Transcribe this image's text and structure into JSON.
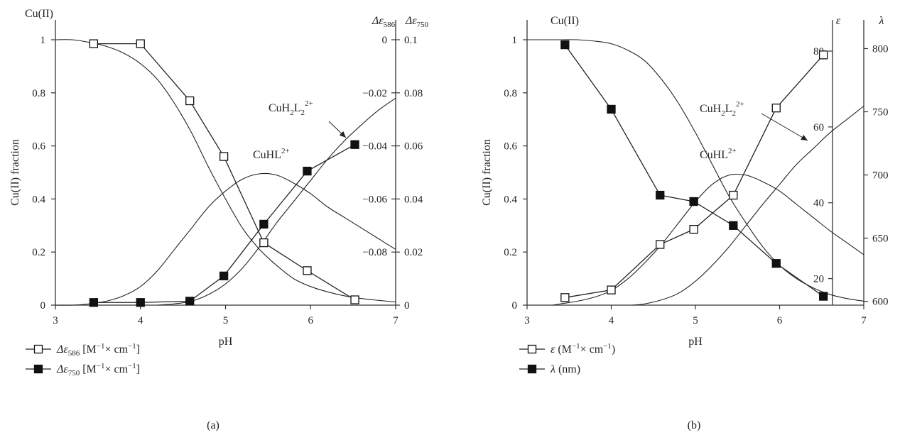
{
  "chart_data": [
    {
      "panel": "(a)",
      "type": "line",
      "corner_label": "Cu(II)",
      "xlabel": "pH",
      "ylabel": "Cu(II) fraction",
      "xlim": [
        3,
        7
      ],
      "ylim": [
        0,
        1
      ],
      "x_ticks": [
        "3",
        "4",
        "5",
        "6",
        "7"
      ],
      "y_ticks": [
        "0",
        "0.2",
        "0.4",
        "0.6",
        "0.8",
        "1"
      ],
      "right_axis_1": {
        "label": "Δε586",
        "ylim": [
          -0.1,
          0
        ],
        "ticks": [
          "0",
          "−0.02",
          "−0.04",
          "−0.06",
          "−0.08"
        ],
        "tick_values": [
          0,
          -0.02,
          -0.04,
          -0.06,
          -0.08
        ]
      },
      "right_axis_2": {
        "label": "Δε750",
        "ylim": [
          0,
          0.1
        ],
        "ticks": [
          "0",
          "0.02",
          "0.04",
          "0.06",
          "0.08",
          "0.1"
        ],
        "tick_values": [
          0,
          0.02,
          0.04,
          0.06,
          0.08,
          0.1
        ]
      },
      "species_curves": [
        {
          "label": "Cu(II)",
          "x": [
            3.0,
            3.2,
            3.4,
            3.6,
            3.8,
            4.0,
            4.2,
            4.4,
            4.6,
            4.8,
            5.0,
            5.2,
            5.4,
            5.6,
            5.8,
            6.0,
            6.2,
            6.4,
            6.6,
            6.8,
            7.0
          ],
          "y": [
            1.0,
            1.0,
            0.99,
            0.975,
            0.95,
            0.91,
            0.85,
            0.76,
            0.65,
            0.52,
            0.4,
            0.29,
            0.21,
            0.15,
            0.1,
            0.07,
            0.05,
            0.035,
            0.025,
            0.018,
            0.012
          ]
        },
        {
          "label": "CuHL2+",
          "x": [
            3.0,
            3.2,
            3.4,
            3.6,
            3.8,
            4.0,
            4.2,
            4.4,
            4.6,
            4.8,
            5.0,
            5.2,
            5.4,
            5.6,
            5.8,
            6.0,
            6.2,
            6.4,
            6.6,
            6.8,
            7.0
          ],
          "y": [
            0.0,
            0.0,
            0.005,
            0.015,
            0.035,
            0.07,
            0.13,
            0.21,
            0.29,
            0.37,
            0.43,
            0.475,
            0.495,
            0.49,
            0.46,
            0.42,
            0.37,
            0.33,
            0.29,
            0.25,
            0.21
          ]
        },
        {
          "label": "CuH2L22+",
          "x": [
            4.2,
            4.4,
            4.6,
            4.8,
            5.0,
            5.2,
            5.4,
            5.6,
            5.8,
            6.0,
            6.2,
            6.4,
            6.6,
            6.8,
            7.0
          ],
          "y": [
            0.0,
            0.005,
            0.015,
            0.04,
            0.08,
            0.14,
            0.22,
            0.31,
            0.39,
            0.47,
            0.55,
            0.62,
            0.68,
            0.735,
            0.78
          ]
        }
      ],
      "annotations": [
        {
          "text": "CuHL2+"
        },
        {
          "text": "CuH2L22+"
        }
      ],
      "series": [
        {
          "name": "Δε586 [M−1× cm−1]",
          "marker": "open-square",
          "axis": "right_axis_1",
          "x": [
            3.45,
            4.0,
            4.58,
            4.98,
            5.45,
            5.96,
            6.52
          ],
          "y": [
            -0.0015,
            -0.0015,
            -0.023,
            -0.044,
            -0.0765,
            -0.087,
            -0.098
          ]
        },
        {
          "name": "Δε750 [M−1× cm−1]",
          "marker": "filled-square",
          "axis": "right_axis_2",
          "x": [
            3.45,
            4.0,
            4.58,
            4.98,
            5.45,
            5.96,
            6.52
          ],
          "y": [
            0.001,
            0.001,
            0.0015,
            0.011,
            0.0305,
            0.0505,
            0.0605
          ]
        }
      ]
    },
    {
      "panel": "(b)",
      "type": "line",
      "corner_label": "Cu(II)",
      "xlabel": "pH",
      "ylabel": "Cu(II) fraction",
      "xlim": [
        3,
        7
      ],
      "ylim": [
        0,
        1
      ],
      "x_ticks": [
        "3",
        "4",
        "5",
        "6",
        "7"
      ],
      "y_ticks": [
        "0",
        "0.2",
        "0.4",
        "0.6",
        "0.8",
        "1"
      ],
      "right_axis_1": {
        "label": "ε",
        "ylim": [
          13,
          83
        ],
        "ticks": [
          "20",
          "40",
          "60",
          "80"
        ],
        "tick_values": [
          20,
          40,
          60,
          80
        ]
      },
      "right_axis_2": {
        "label": "λ",
        "ylim": [
          597,
          807
        ],
        "ticks": [
          "600",
          "650",
          "700",
          "750",
          "800"
        ],
        "tick_values": [
          600,
          650,
          700,
          750,
          800
        ]
      },
      "species_curves": [
        {
          "label": "Cu(II)",
          "x": [
            3.0,
            3.2,
            3.4,
            3.6,
            3.8,
            4.0,
            4.2,
            4.4,
            4.6,
            4.8,
            5.0,
            5.2,
            5.4,
            5.6,
            5.8,
            6.0,
            6.2,
            6.4,
            6.6,
            6.8,
            7.0
          ],
          "y": [
            1.0,
            1.0,
            1.0,
            1.0,
            0.995,
            0.985,
            0.96,
            0.92,
            0.85,
            0.76,
            0.65,
            0.53,
            0.41,
            0.31,
            0.22,
            0.15,
            0.1,
            0.065,
            0.04,
            0.025,
            0.015
          ]
        },
        {
          "label": "CuHL2+",
          "x": [
            3.3,
            3.4,
            3.6,
            3.8,
            4.0,
            4.2,
            4.4,
            4.6,
            4.8,
            5.0,
            5.2,
            5.4,
            5.6,
            5.8,
            6.0,
            6.2,
            6.4,
            6.6,
            6.8,
            7.0
          ],
          "y": [
            0.0,
            0.005,
            0.015,
            0.03,
            0.055,
            0.1,
            0.16,
            0.23,
            0.31,
            0.39,
            0.455,
            0.49,
            0.49,
            0.465,
            0.43,
            0.38,
            0.33,
            0.28,
            0.235,
            0.19
          ]
        },
        {
          "label": "CuH2L22+",
          "x": [
            4.25,
            4.4,
            4.6,
            4.8,
            5.0,
            5.2,
            5.4,
            5.6,
            5.8,
            6.0,
            6.2,
            6.4,
            6.6,
            6.8,
            7.0
          ],
          "y": [
            0.0,
            0.005,
            0.02,
            0.045,
            0.09,
            0.15,
            0.22,
            0.3,
            0.38,
            0.455,
            0.53,
            0.59,
            0.65,
            0.7,
            0.75
          ]
        }
      ],
      "annotations": [
        {
          "text": "CuHL2+"
        },
        {
          "text": "CuH2L22+"
        }
      ],
      "series": [
        {
          "name": "ε (M−1× cm−1)",
          "marker": "open-square",
          "axis": "right_axis_1",
          "x": [
            3.45,
            4.0,
            4.58,
            4.98,
            5.45,
            5.96,
            6.52
          ],
          "y": [
            15.0,
            17.0,
            29.0,
            33.0,
            42.0,
            65.0,
            79.0
          ]
        },
        {
          "name": "λ (nm)",
          "marker": "filled-square",
          "axis": "right_axis_2",
          "x": [
            3.45,
            4.0,
            4.58,
            4.98,
            5.45,
            5.96,
            6.52
          ],
          "y": [
            803,
            752,
            684,
            679,
            660,
            630,
            604
          ]
        }
      ]
    }
  ]
}
